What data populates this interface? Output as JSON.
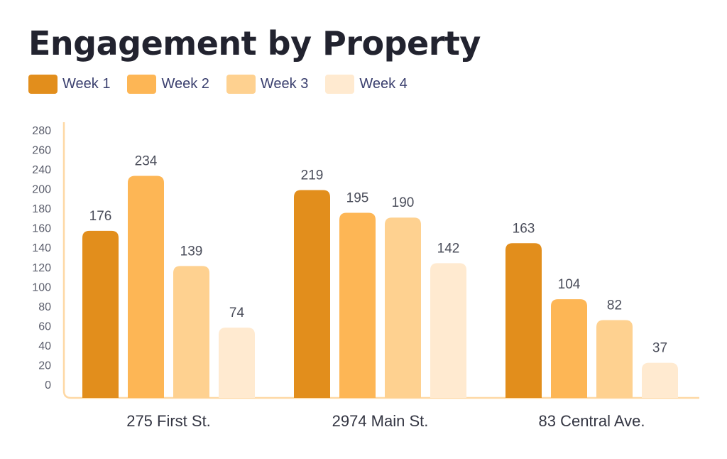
{
  "chart_data": {
    "type": "bar",
    "title": "Engagement by Property",
    "xlabel": "",
    "ylabel": "",
    "categories": [
      "275 First St.",
      "2974 Main St.",
      "83 Central Ave."
    ],
    "series": [
      {
        "name": "Week 1",
        "color": "#e28e1c",
        "values": [
          176,
          219,
          163
        ]
      },
      {
        "name": "Week 2",
        "color": "#fdb655",
        "values": [
          234,
          195,
          104
        ]
      },
      {
        "name": "Week 3",
        "color": "#fed190",
        "values": [
          139,
          190,
          82
        ]
      },
      {
        "name": "Week 4",
        "color": "#ffead0",
        "values": [
          74,
          142,
          37
        ]
      }
    ],
    "y_tick_labels": [
      "0",
      "20",
      "40",
      "60",
      "80",
      "100",
      "120",
      "140",
      "160",
      "180",
      "200",
      "240",
      "260",
      "280"
    ],
    "ylim": [
      0,
      280
    ],
    "grid": false,
    "legend_position": "top-left",
    "axis_color": "#fed8a4"
  }
}
